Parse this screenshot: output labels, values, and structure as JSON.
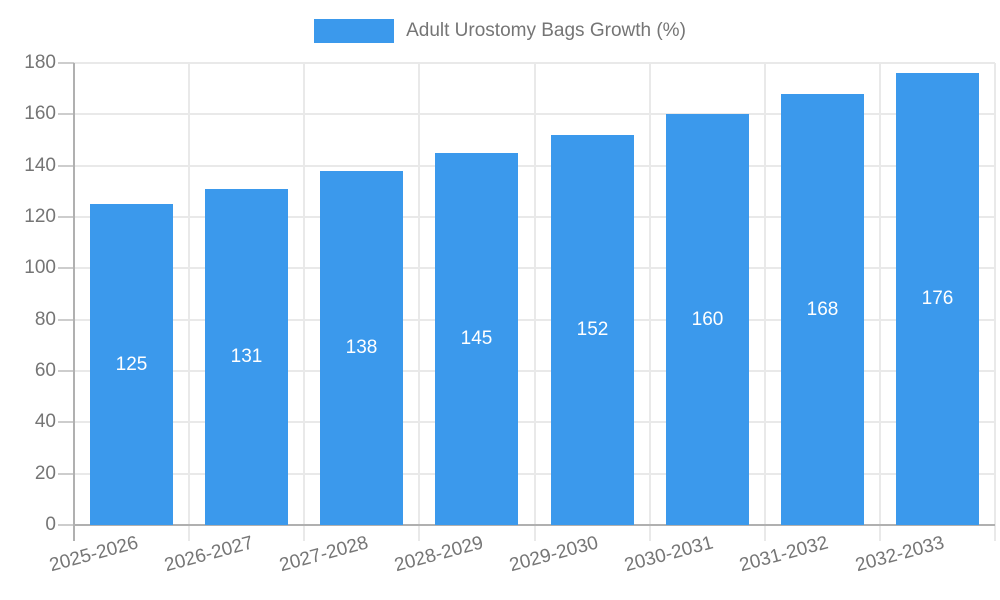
{
  "legend": {
    "label": "Adult Urostomy Bags Growth (%)"
  },
  "chart_data": {
    "type": "bar",
    "title": "Adult Urostomy Bags Growth (%)",
    "categories": [
      "2025-2026",
      "2026-2027",
      "2027-2028",
      "2028-2029",
      "2029-2030",
      "2030-2031",
      "2031-2032",
      "2032-2033"
    ],
    "values": [
      125,
      131,
      138,
      145,
      152,
      160,
      168,
      176
    ],
    "value_labels": [
      "125",
      "131",
      "138",
      "145",
      "152",
      "160",
      "168",
      "176"
    ],
    "xlabel": "",
    "ylabel": "",
    "ylim": [
      0,
      180
    ],
    "y_tick_labels": [
      0,
      20,
      40,
      60,
      80,
      100,
      120,
      140,
      160,
      180
    ],
    "grid": true,
    "legend_position": "top",
    "colors": {
      "bar": "#3b99ec",
      "grid": "#e9e9e9",
      "axis": "#b0b0b0",
      "tick": "#cdcdcd",
      "text": "#757575",
      "value_label": "#ffffff"
    }
  }
}
